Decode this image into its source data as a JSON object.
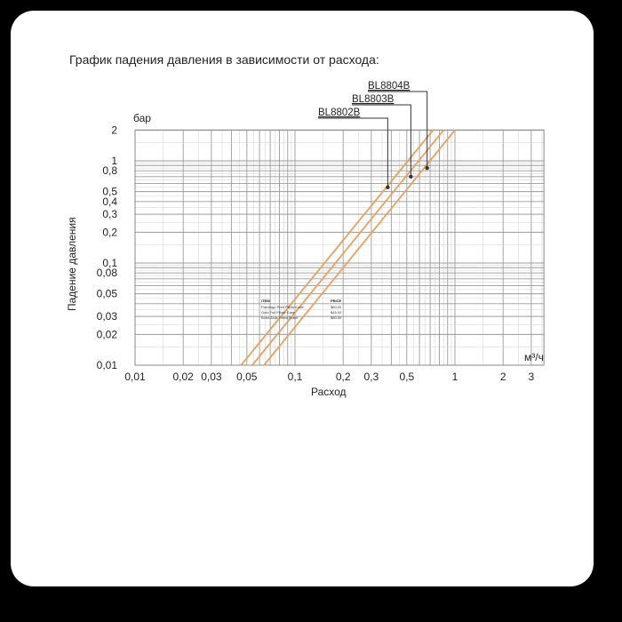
{
  "chart_data": {
    "type": "line",
    "title": "График падения давления в зависимости от расхода:",
    "xlabel": "Расход",
    "xunit": "м³/ч",
    "ylabel": "Падение давления",
    "yunit": "бар",
    "xscale": "log",
    "yscale": "log",
    "xlim": [
      0.01,
      3.6
    ],
    "ylim": [
      0.01,
      2
    ],
    "grid": true,
    "x_ticks": [
      "0,01",
      "0,02",
      "0,03",
      "0,05",
      "0,1",
      "0,2",
      "0,3",
      "0,5",
      "1",
      "2",
      "3"
    ],
    "x_tick_values": [
      0.01,
      0.02,
      0.03,
      0.05,
      0.1,
      0.2,
      0.3,
      0.5,
      1,
      2,
      3
    ],
    "y_ticks": [
      "2",
      "1",
      "0,8",
      "0,5",
      "0,4",
      "0,3",
      "0,2",
      "0,1",
      "0,08",
      "0,05",
      "0,03",
      "0,02",
      "0,01"
    ],
    "y_tick_values": [
      2,
      1,
      0.8,
      0.5,
      0.4,
      0.3,
      0.2,
      0.1,
      0.08,
      0.05,
      0.03,
      0.02,
      0.01
    ],
    "series": [
      {
        "name": "BL8802B",
        "points": [
          [
            0.046,
            0.01
          ],
          [
            0.73,
            2
          ]
        ],
        "marker": [
          0.38,
          0.55
        ]
      },
      {
        "name": "BL8803B",
        "points": [
          [
            0.054,
            0.01
          ],
          [
            0.85,
            2
          ]
        ],
        "marker": [
          0.53,
          0.7
        ]
      },
      {
        "name": "BL8804B",
        "points": [
          [
            0.064,
            0.01
          ],
          [
            1.0,
            2
          ]
        ],
        "marker": [
          0.67,
          0.85
        ]
      }
    ],
    "line_color": "#e8a060"
  },
  "overlay_table": {
    "headers": [
      "ITEM",
      "PRICE"
    ],
    "rows": [
      [
        "Flamingo Print Pillow Case",
        "$60.00"
      ],
      [
        "Gold Foil Pillow Case",
        "$45.00"
      ],
      [
        "Boho Dots Fitted Sheet",
        "$80.00"
      ]
    ]
  }
}
